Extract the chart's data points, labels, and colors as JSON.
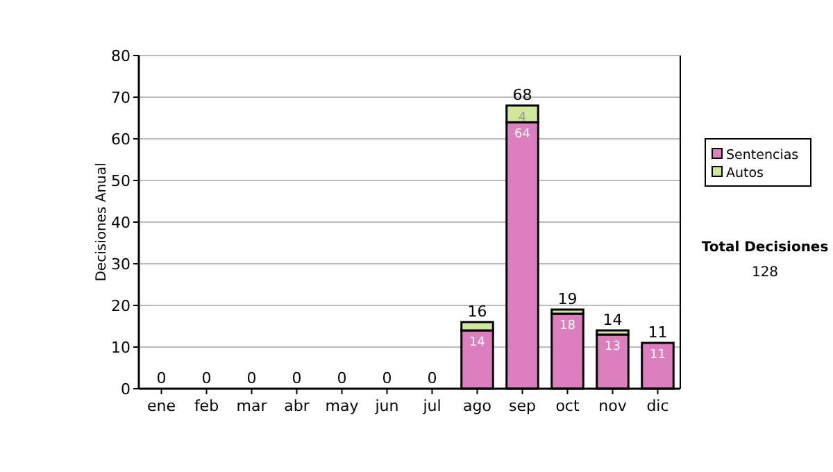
{
  "chart_data": {
    "type": "bar",
    "stacked": true,
    "ylabel": "Decisiones Anual",
    "categories": [
      "ene",
      "feb",
      "mar",
      "abr",
      "may",
      "jun",
      "jul",
      "ago",
      "sep",
      "oct",
      "nov",
      "dic"
    ],
    "series": [
      {
        "name": "Sentencias",
        "color": "#dd7fbf",
        "values": [
          0,
          0,
          0,
          0,
          0,
          0,
          0,
          14,
          64,
          18,
          13,
          11
        ],
        "value_labels": [
          null,
          null,
          null,
          null,
          null,
          null,
          null,
          "14",
          "64",
          "18",
          "13",
          "11"
        ]
      },
      {
        "name": "Autos",
        "color": "#cfe89a",
        "values": [
          0,
          0,
          0,
          0,
          0,
          0,
          0,
          2,
          4,
          1,
          1,
          0
        ],
        "value_labels": [
          null,
          null,
          null,
          null,
          null,
          null,
          null,
          null,
          "4",
          null,
          null,
          null
        ]
      }
    ],
    "totals": [
      "0",
      "0",
      "0",
      "0",
      "0",
      "0",
      "0",
      "16",
      "68",
      "19",
      "14",
      "11"
    ],
    "ylim": [
      0,
      80
    ],
    "yticks": [
      0,
      10,
      20,
      30,
      40,
      50,
      60,
      70,
      80
    ],
    "grid": "y",
    "legend": "right",
    "annotations": [
      "Total Decisiones",
      "128"
    ]
  }
}
